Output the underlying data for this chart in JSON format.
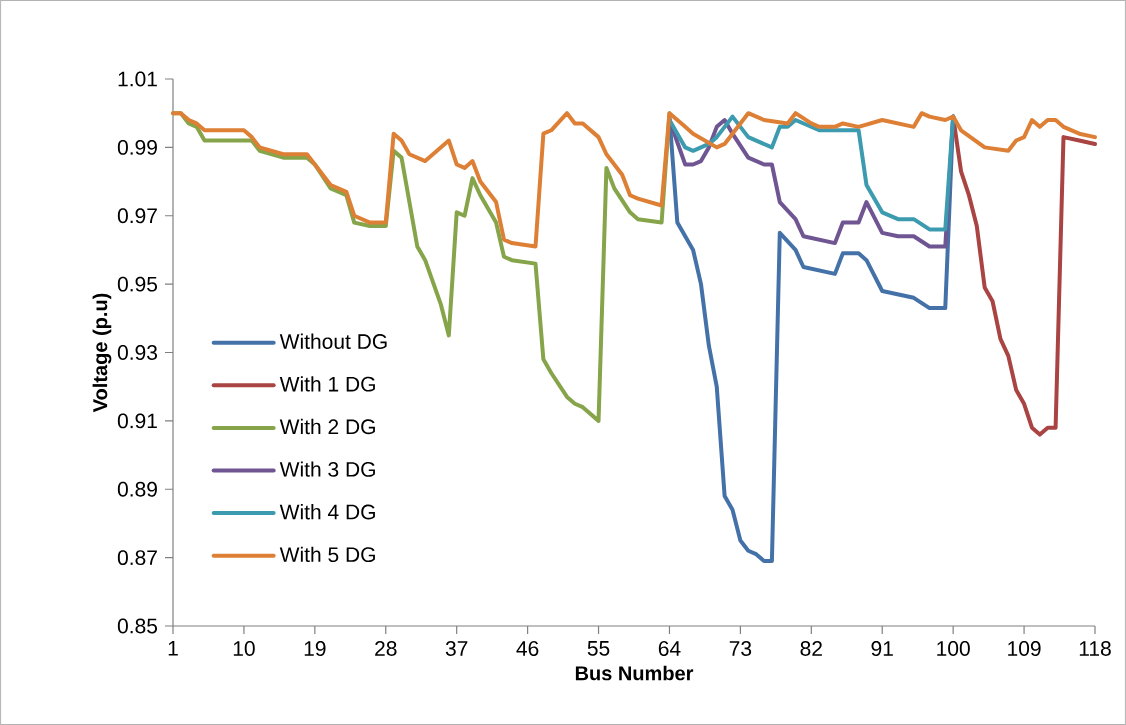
{
  "chart_data": {
    "type": "line",
    "xlabel": "Bus Number",
    "ylabel": "Voltage (p.u)",
    "xlim": [
      1,
      118
    ],
    "xticks": [
      1,
      10,
      19,
      28,
      37,
      46,
      55,
      64,
      73,
      82,
      91,
      100,
      109,
      118
    ],
    "ylim": [
      0.85,
      1.01
    ],
    "yticks": [
      {
        "value": 0.85,
        "label": "0.85"
      },
      {
        "value": 0.87,
        "label": "0.87"
      },
      {
        "value": 0.89,
        "label": "0.89"
      },
      {
        "value": 0.91,
        "label": "0.91"
      },
      {
        "value": 0.93,
        "label": "0.93"
      },
      {
        "value": 0.95,
        "label": "0.95"
      },
      {
        "value": 0.97,
        "label": "0.97"
      },
      {
        "value": 0.99,
        "label": "0.99"
      },
      {
        "value": 1.01,
        "label": "1.01"
      }
    ],
    "legend": "bottom left",
    "grid": false,
    "series": [
      {
        "name": "Without DG",
        "color": "#4472a8",
        "x": [
          64,
          65,
          67,
          68,
          69,
          70,
          71,
          72,
          73,
          74,
          75,
          76,
          77,
          78,
          80,
          81,
          83,
          85,
          86,
          88,
          89,
          91,
          93,
          95,
          97,
          99,
          100
        ],
        "values": [
          0.999,
          0.968,
          0.96,
          0.95,
          0.932,
          0.92,
          0.888,
          0.884,
          0.875,
          0.872,
          0.871,
          0.869,
          0.869,
          0.965,
          0.96,
          0.955,
          0.954,
          0.953,
          0.959,
          0.959,
          0.957,
          0.948,
          0.947,
          0.946,
          0.943,
          0.943,
          0.999
        ]
      },
      {
        "name": "With 1 DG",
        "color": "#a94442",
        "x": [
          100,
          101,
          102,
          103,
          104,
          105,
          106,
          107,
          108,
          109,
          110,
          111,
          112,
          113,
          114,
          116,
          118
        ],
        "values": [
          0.999,
          0.983,
          0.976,
          0.967,
          0.949,
          0.945,
          0.934,
          0.929,
          0.919,
          0.915,
          0.908,
          0.906,
          0.908,
          0.908,
          0.993,
          0.992,
          0.991
        ]
      },
      {
        "name": "With 2 DG",
        "color": "#86a44a",
        "x": [
          1,
          2,
          3,
          4,
          5,
          11,
          12,
          15,
          18,
          19,
          21,
          23,
          24,
          26,
          28,
          29,
          30,
          32,
          33,
          35,
          36,
          37,
          38,
          39,
          40,
          42,
          43,
          44,
          47,
          48,
          49,
          51,
          52,
          53,
          55,
          56,
          57,
          59,
          60,
          63,
          64
        ],
        "values": [
          1.0,
          1.0,
          0.997,
          0.996,
          0.992,
          0.992,
          0.989,
          0.987,
          0.987,
          0.985,
          0.978,
          0.976,
          0.968,
          0.967,
          0.967,
          0.989,
          0.987,
          0.961,
          0.957,
          0.944,
          0.935,
          0.971,
          0.97,
          0.981,
          0.976,
          0.968,
          0.958,
          0.957,
          0.956,
          0.928,
          0.924,
          0.917,
          0.915,
          0.914,
          0.91,
          0.984,
          0.978,
          0.971,
          0.969,
          0.968,
          1.0
        ]
      },
      {
        "name": "With 3 DG",
        "color": "#6f5592",
        "x": [
          64,
          66,
          67,
          68,
          69,
          70,
          71,
          72,
          74,
          75,
          76,
          77,
          78,
          80,
          81,
          83,
          85,
          86,
          88,
          89,
          91,
          93,
          95,
          97,
          99,
          100
        ],
        "values": [
          0.998,
          0.985,
          0.985,
          0.986,
          0.99,
          0.996,
          0.998,
          0.994,
          0.987,
          0.986,
          0.985,
          0.985,
          0.974,
          0.969,
          0.964,
          0.963,
          0.962,
          0.968,
          0.968,
          0.974,
          0.965,
          0.964,
          0.964,
          0.961,
          0.961,
          0.999
        ]
      },
      {
        "name": "With 4 DG",
        "color": "#3d9bb0",
        "x": [
          64,
          66,
          67,
          69,
          70,
          71,
          72,
          74,
          75,
          77,
          78,
          79,
          80,
          81,
          83,
          85,
          86,
          88,
          89,
          91,
          93,
          95,
          97,
          99,
          100
        ],
        "values": [
          0.998,
          0.99,
          0.989,
          0.991,
          0.993,
          0.996,
          0.999,
          0.993,
          0.992,
          0.99,
          0.996,
          0.996,
          0.998,
          0.997,
          0.995,
          0.995,
          0.995,
          0.995,
          0.979,
          0.971,
          0.969,
          0.969,
          0.966,
          0.966,
          0.999
        ]
      },
      {
        "name": "With 5 DG",
        "color": "#dd8035",
        "x": [
          1,
          2,
          3,
          4,
          5,
          10,
          11,
          12,
          15,
          18,
          19,
          21,
          23,
          24,
          26,
          28,
          29,
          30,
          31,
          33,
          36,
          37,
          38,
          39,
          40,
          42,
          43,
          44,
          47,
          48,
          49,
          51,
          52,
          53,
          55,
          56,
          58,
          59,
          60,
          63,
          64,
          66,
          67,
          70,
          71,
          74,
          75,
          76,
          79,
          80,
          82,
          83,
          85,
          86,
          88,
          91,
          93,
          95,
          96,
          97,
          99,
          100,
          101,
          104,
          107,
          108,
          109,
          110,
          111,
          112,
          113,
          114,
          116,
          118
        ],
        "values": [
          1.0,
          1.0,
          0.998,
          0.997,
          0.995,
          0.995,
          0.993,
          0.99,
          0.988,
          0.988,
          0.985,
          0.979,
          0.977,
          0.97,
          0.968,
          0.968,
          0.994,
          0.992,
          0.988,
          0.986,
          0.992,
          0.985,
          0.984,
          0.986,
          0.98,
          0.974,
          0.963,
          0.962,
          0.961,
          0.994,
          0.995,
          1.0,
          0.997,
          0.997,
          0.993,
          0.988,
          0.982,
          0.976,
          0.975,
          0.973,
          1.0,
          0.996,
          0.994,
          0.99,
          0.991,
          1.0,
          0.999,
          0.998,
          0.997,
          1.0,
          0.997,
          0.996,
          0.996,
          0.997,
          0.996,
          0.998,
          0.997,
          0.996,
          1.0,
          0.999,
          0.998,
          0.999,
          0.995,
          0.99,
          0.989,
          0.992,
          0.993,
          0.998,
          0.996,
          0.998,
          0.998,
          0.996,
          0.994,
          0.993
        ]
      }
    ]
  }
}
